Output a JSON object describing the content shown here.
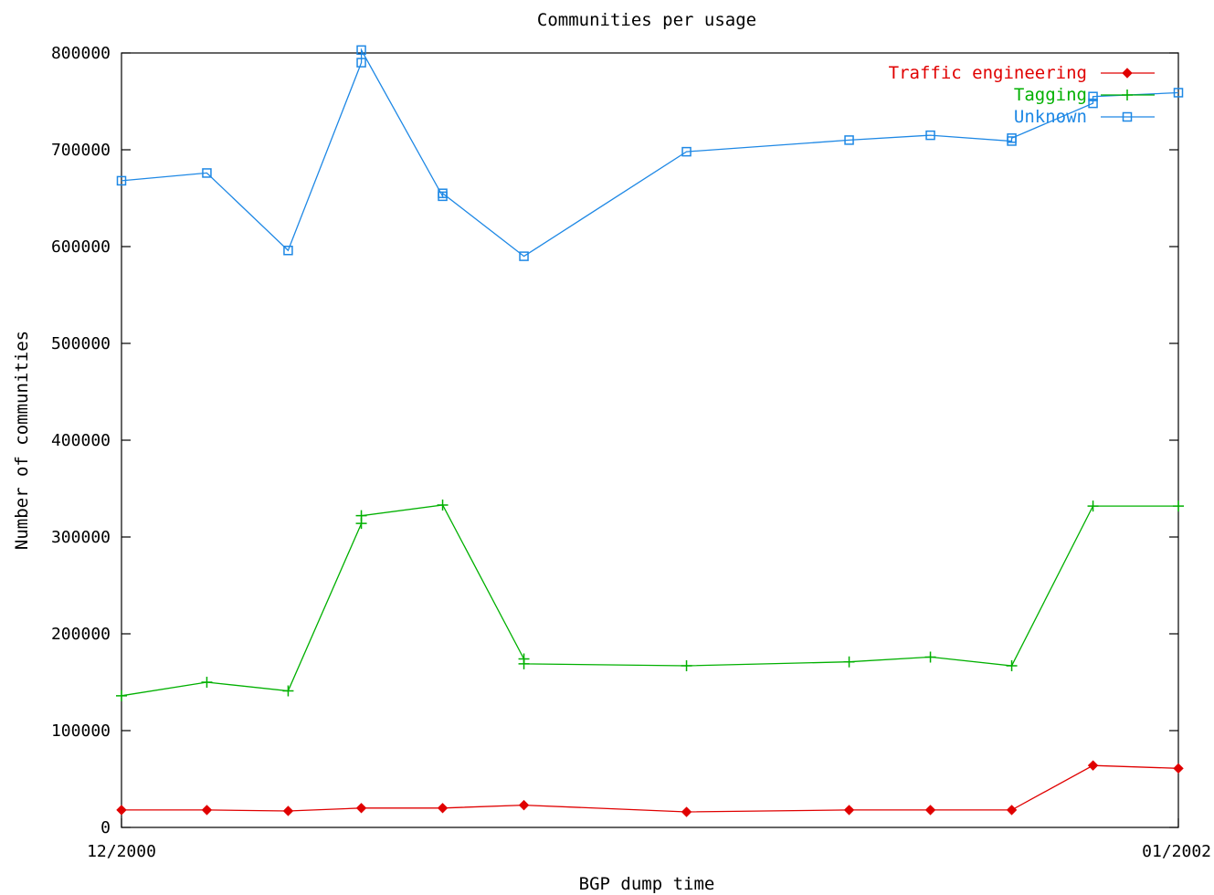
{
  "chart_data": {
    "type": "line",
    "title": "Communities per usage",
    "xlabel": "BGP dump time",
    "ylabel": "Number of communities",
    "xlim": [
      0,
      13
    ],
    "ylim": [
      0,
      800000
    ],
    "yticks": [
      "0",
      "100000",
      "200000",
      "300000",
      "400000",
      "500000",
      "600000",
      "700000",
      "800000"
    ],
    "ytick_values": [
      0,
      100000,
      200000,
      300000,
      400000,
      500000,
      600000,
      700000,
      800000
    ],
    "xticks": [
      {
        "value": 0,
        "label": "12/2000"
      },
      {
        "value": 13,
        "label": "01/2002"
      }
    ],
    "grid": false,
    "legend_position": "top-right",
    "series": [
      {
        "name": "Traffic engineering",
        "color": "#e00000",
        "marker": "diamond",
        "points": [
          [
            0,
            18000
          ],
          [
            1.05,
            18000
          ],
          [
            2.05,
            17000
          ],
          [
            2.95,
            20000
          ],
          [
            3.95,
            20000
          ],
          [
            4.95,
            23000
          ],
          [
            6.95,
            16000
          ],
          [
            8.95,
            18000
          ],
          [
            9.95,
            18000
          ],
          [
            10.95,
            18000
          ],
          [
            11.95,
            64000
          ],
          [
            13,
            61000
          ]
        ]
      },
      {
        "name": "Tagging",
        "color": "#00b000",
        "marker": "plus",
        "points": [
          [
            0,
            136000
          ],
          [
            1.05,
            150000
          ],
          [
            2.05,
            141000
          ],
          [
            2.95,
            314000
          ],
          [
            2.95,
            322000
          ],
          [
            3.95,
            333000
          ],
          [
            4.95,
            174000
          ],
          [
            4.95,
            169000
          ],
          [
            6.95,
            167000
          ],
          [
            8.95,
            171000
          ],
          [
            9.95,
            176000
          ],
          [
            10.95,
            167000
          ],
          [
            11.95,
            332000
          ],
          [
            13,
            332000
          ]
        ]
      },
      {
        "name": "Unknown",
        "color": "#1e88e5",
        "marker": "square",
        "points": [
          [
            0,
            668000
          ],
          [
            1.05,
            676000
          ],
          [
            2.05,
            596000
          ],
          [
            2.95,
            790000
          ],
          [
            2.95,
            803000
          ],
          [
            3.95,
            652000
          ],
          [
            3.95,
            655000
          ],
          [
            4.95,
            590000
          ],
          [
            6.95,
            698000
          ],
          [
            8.95,
            710000
          ],
          [
            9.95,
            715000
          ],
          [
            10.95,
            709000
          ],
          [
            10.95,
            712000
          ],
          [
            11.95,
            748000
          ],
          [
            11.95,
            755000
          ],
          [
            13,
            759000
          ]
        ]
      }
    ]
  }
}
